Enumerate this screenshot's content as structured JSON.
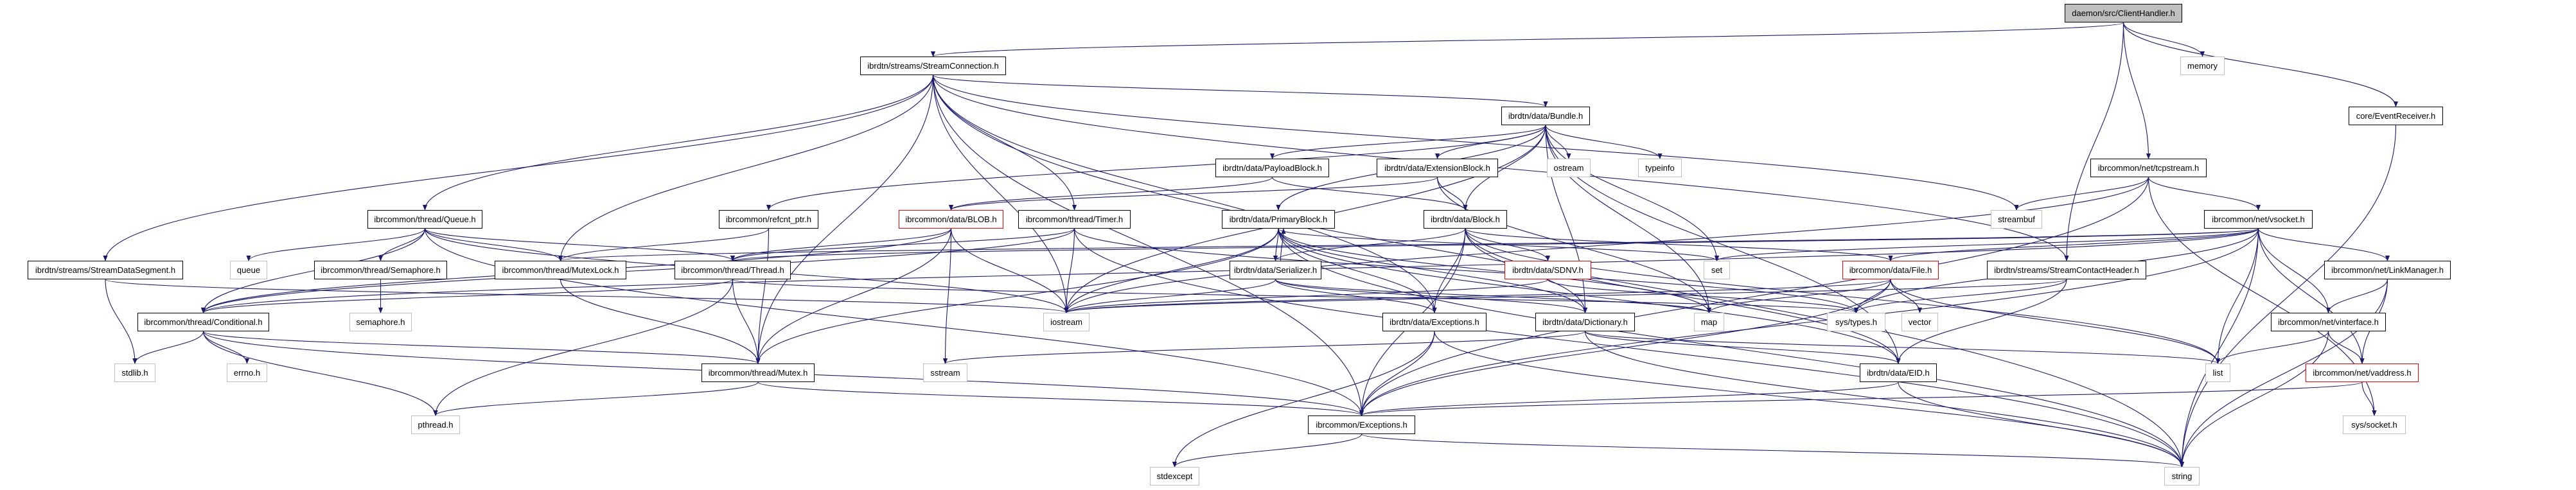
{
  "colors": {
    "edge": "#191970",
    "root_fill": "#bfbfbf",
    "truncated_border": "#ff0000",
    "system_border": "#bfbfbf",
    "project_border": "#000000"
  },
  "nodes": [
    {
      "id": "ClientHandler",
      "label": "daemon/src/ClientHandler.h",
      "kind": "root"
    },
    {
      "id": "StreamConnection",
      "label": "ibrdtn/streams/StreamConnection.h",
      "kind": "normal"
    },
    {
      "id": "memory",
      "label": "memory",
      "kind": "sys"
    },
    {
      "id": "Bundle",
      "label": "ibrdtn/data/Bundle.h",
      "kind": "normal"
    },
    {
      "id": "EventReceiver",
      "label": "core/EventReceiver.h",
      "kind": "normal"
    },
    {
      "id": "PayloadBlock",
      "label": "ibrdtn/data/PayloadBlock.h",
      "kind": "normal"
    },
    {
      "id": "ExtensionBlock",
      "label": "ibrdtn/data/ExtensionBlock.h",
      "kind": "normal"
    },
    {
      "id": "ostream",
      "label": "ostream",
      "kind": "sys"
    },
    {
      "id": "typeinfo",
      "label": "typeinfo",
      "kind": "sys"
    },
    {
      "id": "tcpstream",
      "label": "ibrcommon/net/tcpstream.h",
      "kind": "normal"
    },
    {
      "id": "Queue",
      "label": "ibrcommon/thread/Queue.h",
      "kind": "normal"
    },
    {
      "id": "refcnt",
      "label": "ibrcommon/refcnt_ptr.h",
      "kind": "normal"
    },
    {
      "id": "BLOB",
      "label": "ibrcommon/data/BLOB.h",
      "kind": "red"
    },
    {
      "id": "Timer",
      "label": "ibrcommon/thread/Timer.h",
      "kind": "normal"
    },
    {
      "id": "PrimaryBlock",
      "label": "ibrdtn/data/PrimaryBlock.h",
      "kind": "normal"
    },
    {
      "id": "Block",
      "label": "ibrdtn/data/Block.h",
      "kind": "normal"
    },
    {
      "id": "streambuf",
      "label": "streambuf",
      "kind": "sys"
    },
    {
      "id": "vsocket",
      "label": "ibrcommon/net/vsocket.h",
      "kind": "normal"
    },
    {
      "id": "StreamDataSegment",
      "label": "ibrdtn/streams/StreamDataSegment.h",
      "kind": "normal"
    },
    {
      "id": "queue",
      "label": "queue",
      "kind": "sys"
    },
    {
      "id": "Semaphore",
      "label": "ibrcommon/thread/Semaphore.h",
      "kind": "normal"
    },
    {
      "id": "MutexLock",
      "label": "ibrcommon/thread/MutexLock.h",
      "kind": "normal"
    },
    {
      "id": "Thread",
      "label": "ibrcommon/thread/Thread.h",
      "kind": "normal"
    },
    {
      "id": "Serializer",
      "label": "ibrdtn/data/Serializer.h",
      "kind": "normal"
    },
    {
      "id": "SDNV",
      "label": "ibrdtn/data/SDNV.h",
      "kind": "red"
    },
    {
      "id": "set",
      "label": "set",
      "kind": "sys"
    },
    {
      "id": "File",
      "label": "ibrcommon/data/File.h",
      "kind": "red"
    },
    {
      "id": "StreamContactHeader",
      "label": "ibrdtn/streams/StreamContactHeader.h",
      "kind": "normal"
    },
    {
      "id": "LinkManager",
      "label": "ibrcommon/net/LinkManager.h",
      "kind": "normal"
    },
    {
      "id": "Conditional",
      "label": "ibrcommon/thread/Conditional.h",
      "kind": "normal"
    },
    {
      "id": "semaphore",
      "label": "semaphore.h",
      "kind": "sys"
    },
    {
      "id": "iostream",
      "label": "iostream",
      "kind": "sys"
    },
    {
      "id": "DataExceptions",
      "label": "ibrdtn/data/Exceptions.h",
      "kind": "normal"
    },
    {
      "id": "Dictionary",
      "label": "ibrdtn/data/Dictionary.h",
      "kind": "normal"
    },
    {
      "id": "map",
      "label": "map",
      "kind": "sys"
    },
    {
      "id": "systypes",
      "label": "sys/types.h",
      "kind": "sys"
    },
    {
      "id": "vector",
      "label": "vector",
      "kind": "sys"
    },
    {
      "id": "vinterface",
      "label": "ibrcommon/net/vinterface.h",
      "kind": "normal"
    },
    {
      "id": "stdlib",
      "label": "stdlib.h",
      "kind": "sys"
    },
    {
      "id": "errno",
      "label": "errno.h",
      "kind": "sys"
    },
    {
      "id": "Mutex",
      "label": "ibrcommon/thread/Mutex.h",
      "kind": "normal"
    },
    {
      "id": "sstream",
      "label": "sstream",
      "kind": "sys"
    },
    {
      "id": "EID",
      "label": "ibrdtn/data/EID.h",
      "kind": "normal"
    },
    {
      "id": "list",
      "label": "list",
      "kind": "sys"
    },
    {
      "id": "vaddress",
      "label": "ibrcommon/net/vaddress.h",
      "kind": "red"
    },
    {
      "id": "pthread",
      "label": "pthread.h",
      "kind": "sys"
    },
    {
      "id": "Exceptions",
      "label": "ibrcommon/Exceptions.h",
      "kind": "normal"
    },
    {
      "id": "syssocket",
      "label": "sys/socket.h",
      "kind": "sys"
    },
    {
      "id": "stdexcept",
      "label": "stdexcept",
      "kind": "sys"
    },
    {
      "id": "string",
      "label": "string",
      "kind": "sys"
    }
  ],
  "edges": [
    [
      "ClientHandler",
      "StreamConnection"
    ],
    [
      "ClientHandler",
      "memory"
    ],
    [
      "ClientHandler",
      "EventReceiver"
    ],
    [
      "ClientHandler",
      "tcpstream"
    ],
    [
      "ClientHandler",
      "StreamContactHeader"
    ],
    [
      "StreamConnection",
      "Bundle"
    ],
    [
      "StreamConnection",
      "Queue"
    ],
    [
      "StreamConnection",
      "StreamDataSegment"
    ],
    [
      "StreamConnection",
      "MutexLock"
    ],
    [
      "StreamConnection",
      "Timer"
    ],
    [
      "StreamConnection",
      "iostream"
    ],
    [
      "StreamConnection",
      "streambuf"
    ],
    [
      "StreamConnection",
      "StreamContactHeader"
    ],
    [
      "StreamConnection",
      "Exceptions"
    ],
    [
      "StreamConnection",
      "Mutex"
    ],
    [
      "StreamConnection",
      "DataExceptions"
    ],
    [
      "StreamConnection",
      "string"
    ],
    [
      "Queue",
      "Conditional"
    ],
    [
      "Queue",
      "queue"
    ],
    [
      "Queue",
      "Semaphore"
    ],
    [
      "Queue",
      "MutexLock"
    ],
    [
      "Queue",
      "Thread"
    ],
    [
      "Queue",
      "iostream"
    ],
    [
      "Queue",
      "Exceptions"
    ],
    [
      "StreamDataSegment",
      "stdlib"
    ],
    [
      "StreamDataSegment",
      "iostream"
    ],
    [
      "Semaphore",
      "semaphore"
    ],
    [
      "MutexLock",
      "Mutex"
    ],
    [
      "Conditional",
      "stdlib"
    ],
    [
      "Conditional",
      "errno"
    ],
    [
      "Conditional",
      "pthread"
    ],
    [
      "Conditional",
      "Mutex"
    ],
    [
      "Conditional",
      "Exceptions"
    ],
    [
      "Thread",
      "Mutex"
    ],
    [
      "Thread",
      "Conditional"
    ],
    [
      "Thread",
      "pthread"
    ],
    [
      "Thread",
      "systypes"
    ],
    [
      "Mutex",
      "pthread"
    ],
    [
      "Mutex",
      "Exceptions"
    ],
    [
      "refcnt",
      "Mutex"
    ],
    [
      "refcnt",
      "MutexLock"
    ],
    [
      "BLOB",
      "Mutex"
    ],
    [
      "BLOB",
      "iostream"
    ],
    [
      "BLOB",
      "sstream"
    ],
    [
      "BLOB",
      "Thread"
    ],
    [
      "BLOB",
      "Conditional"
    ],
    [
      "Timer",
      "Thread"
    ],
    [
      "Timer",
      "Conditional"
    ],
    [
      "Timer",
      "iostream"
    ],
    [
      "Timer",
      "string"
    ],
    [
      "Timer",
      "systypes"
    ],
    [
      "Bundle",
      "PayloadBlock"
    ],
    [
      "Bundle",
      "ExtensionBlock"
    ],
    [
      "Bundle",
      "PrimaryBlock"
    ],
    [
      "Bundle",
      "Block"
    ],
    [
      "Bundle",
      "ostream"
    ],
    [
      "Bundle",
      "typeinfo"
    ],
    [
      "Bundle",
      "set"
    ],
    [
      "Bundle",
      "map"
    ],
    [
      "Bundle",
      "Dictionary"
    ],
    [
      "Bundle",
      "EID"
    ],
    [
      "Bundle",
      "refcnt"
    ],
    [
      "Bundle",
      "iostream"
    ],
    [
      "PayloadBlock",
      "BLOB"
    ],
    [
      "PayloadBlock",
      "Block"
    ],
    [
      "ExtensionBlock",
      "BLOB"
    ],
    [
      "ExtensionBlock",
      "Block"
    ],
    [
      "ExtensionBlock",
      "map"
    ],
    [
      "Block",
      "Serializer"
    ],
    [
      "Block",
      "SDNV"
    ],
    [
      "Block",
      "DataExceptions"
    ],
    [
      "Block",
      "Dictionary"
    ],
    [
      "Block",
      "EID"
    ],
    [
      "Block",
      "Exceptions"
    ],
    [
      "Block",
      "list"
    ],
    [
      "Block",
      "File"
    ],
    [
      "PrimaryBlock",
      "Serializer"
    ],
    [
      "PrimaryBlock",
      "iostream"
    ],
    [
      "PrimaryBlock",
      "Mutex"
    ],
    [
      "PrimaryBlock",
      "DataExceptions"
    ],
    [
      "PrimaryBlock",
      "Dictionary"
    ],
    [
      "PrimaryBlock",
      "EID"
    ],
    [
      "PrimaryBlock",
      "set"
    ],
    [
      "PrimaryBlock",
      "string"
    ],
    [
      "PrimaryBlock",
      "map"
    ],
    [
      "Serializer",
      "PrimaryBlock"
    ],
    [
      "Serializer",
      "iostream"
    ],
    [
      "Serializer",
      "DataExceptions"
    ],
    [
      "Serializer",
      "Dictionary"
    ],
    [
      "Serializer",
      "map"
    ],
    [
      "SDNV",
      "iostream"
    ],
    [
      "SDNV",
      "systypes"
    ],
    [
      "File",
      "systypes"
    ],
    [
      "File",
      "vector"
    ],
    [
      "File",
      "list"
    ],
    [
      "File",
      "map"
    ],
    [
      "File",
      "Exceptions"
    ],
    [
      "File",
      "iostream"
    ],
    [
      "DataExceptions",
      "Exceptions"
    ],
    [
      "DataExceptions",
      "stdexcept"
    ],
    [
      "DataExceptions",
      "string"
    ],
    [
      "Dictionary",
      "EID"
    ],
    [
      "Dictionary",
      "sstream"
    ],
    [
      "Dictionary",
      "list"
    ],
    [
      "Dictionary",
      "string"
    ],
    [
      "EID",
      "Exceptions"
    ],
    [
      "EID",
      "string"
    ],
    [
      "Exceptions",
      "stdexcept"
    ],
    [
      "Exceptions",
      "string"
    ],
    [
      "EventReceiver",
      "string"
    ],
    [
      "tcpstream",
      "streambuf"
    ],
    [
      "tcpstream",
      "vsocket"
    ],
    [
      "tcpstream",
      "iostream"
    ],
    [
      "tcpstream",
      "Exceptions"
    ],
    [
      "tcpstream",
      "syssocket"
    ],
    [
      "vsocket",
      "list"
    ],
    [
      "vsocket",
      "vinterface"
    ],
    [
      "vsocket",
      "LinkManager"
    ],
    [
      "vsocket",
      "vaddress"
    ],
    [
      "vsocket",
      "string"
    ],
    [
      "vsocket",
      "systypes"
    ],
    [
      "vsocket",
      "set"
    ],
    [
      "vsocket",
      "Thread"
    ],
    [
      "vsocket",
      "File"
    ],
    [
      "vsocket",
      "MutexLock"
    ],
    [
      "vsocket",
      "Conditional"
    ],
    [
      "vsocket",
      "Exceptions"
    ],
    [
      "LinkManager",
      "vinterface"
    ],
    [
      "LinkManager",
      "vaddress"
    ],
    [
      "LinkManager",
      "string"
    ],
    [
      "vinterface",
      "list"
    ],
    [
      "vinterface",
      "vaddress"
    ],
    [
      "vinterface",
      "string"
    ],
    [
      "vaddress",
      "syssocket"
    ],
    [
      "vaddress",
      "Exceptions"
    ],
    [
      "StreamContactHeader",
      "EID"
    ],
    [
      "StreamContactHeader",
      "iostream"
    ],
    [
      "StreamContactHeader",
      "systypes"
    ]
  ]
}
